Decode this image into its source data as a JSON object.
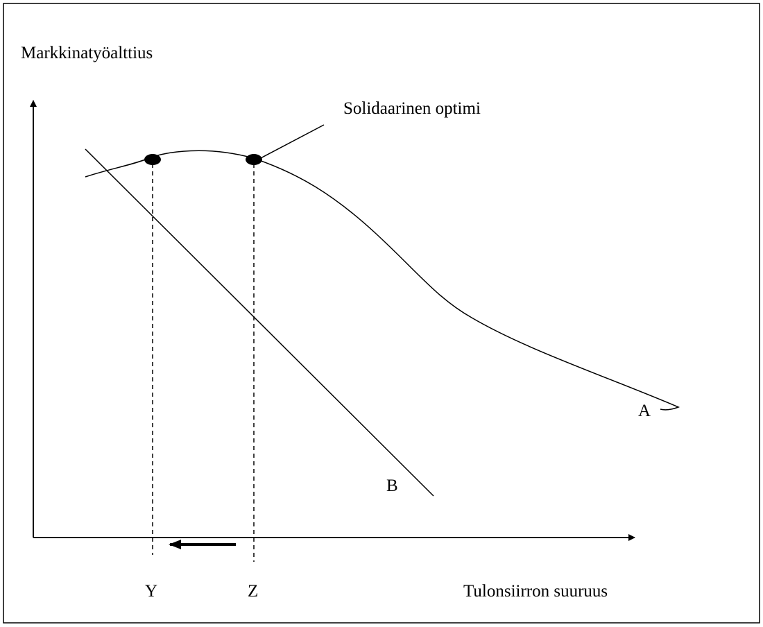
{
  "y_axis_label": "Markkinatyöalttius",
  "annotation": "Solidaarinen optimi",
  "curves": {
    "A": "A",
    "B": "B"
  },
  "x_points": {
    "Y": "Y",
    "Z": "Z"
  },
  "x_axis_label": "Tulonsiirron suuruus"
}
